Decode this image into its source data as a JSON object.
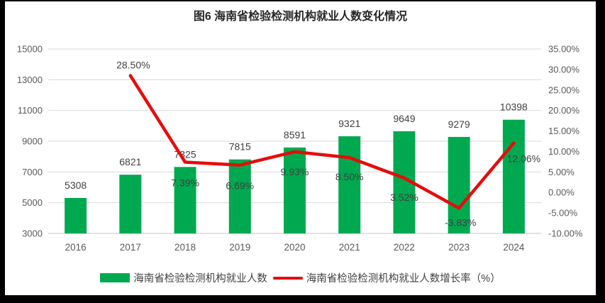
{
  "frame": {
    "border_color": "#000000",
    "chart_background": "#FFFFFF"
  },
  "chart_data": {
    "type": "combo",
    "title": "图6  海南省检验检测机构就业人数变化情况",
    "categories": [
      "2016",
      "2017",
      "2018",
      "2019",
      "2020",
      "2021",
      "2022",
      "2023",
      "2024"
    ],
    "series": [
      {
        "name": "海南省检验检测机构就业人数",
        "chart_type": "bar",
        "axis": "left",
        "color": "#00A950",
        "values": [
          5308,
          6821,
          7325,
          7815,
          8591,
          9321,
          9649,
          9279,
          10398
        ],
        "data_labels": [
          "5308",
          "6821",
          "7325",
          "7815",
          "8591",
          "9321",
          "9649",
          "9279",
          "10398"
        ]
      },
      {
        "name": "海南省检验检测机构就业人数增长率（%）",
        "chart_type": "line",
        "axis": "right",
        "color": "#E60C0C",
        "values": [
          null,
          28.5,
          7.39,
          6.69,
          9.93,
          8.5,
          3.52,
          -3.83,
          12.06
        ],
        "data_labels": [
          null,
          "28.50%",
          "7.39%",
          "6.69%",
          "9.93%",
          "8.50%",
          "3.52%",
          "-3.83%",
          "12.06%"
        ]
      }
    ],
    "left_axis": {
      "min": 3000,
      "max": 15000,
      "step": 2000,
      "tick_labels": [
        "15000",
        "13000",
        "11000",
        "9000",
        "7000",
        "5000",
        "3000"
      ]
    },
    "right_axis": {
      "min": -10,
      "max": 35,
      "step": 5,
      "unit": "%",
      "tick_labels": [
        "35.00%",
        "30.00%",
        "25.00%",
        "20.00%",
        "15.00%",
        "10.00%",
        "5.00%",
        "0.00%",
        "-5.00%",
        "-10.00%"
      ]
    },
    "grid": true,
    "gridline_color": "#D9D9D9",
    "axis_line_color": "#C6C6C6",
    "tick_label_color": "#595959",
    "data_label_color": "#3F3F3F",
    "legend_position": "bottom"
  }
}
